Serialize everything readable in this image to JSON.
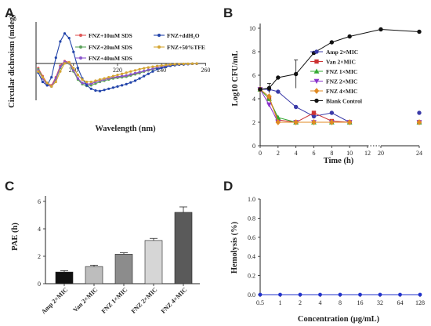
{
  "chart_data": [
    {
      "panel": "A",
      "type": "line",
      "xlabel": "Wavelength (nm)",
      "ylabel": "Circular dichroism (mdeg)",
      "xticks": [
        "200",
        "220",
        "240",
        "260"
      ],
      "xlim": [
        183,
        262
      ],
      "ylim": [
        -3.2,
        3.6
      ],
      "series": [
        {
          "name": "FNZ+10mM SDS",
          "color": "#e05555",
          "marker": "circle",
          "x": [
            184,
            186,
            188,
            190,
            192,
            194,
            196,
            198,
            200,
            202,
            204,
            206,
            208,
            210,
            212,
            214,
            216,
            218,
            220,
            222,
            224,
            226,
            228,
            230,
            232,
            234,
            236,
            238,
            240,
            242,
            244,
            246,
            248,
            250,
            252,
            254,
            256
          ],
          "y": [
            -0.4,
            -1.1,
            -1.7,
            -1.9,
            -1.2,
            -0.2,
            0.2,
            0.1,
            -0.6,
            -1.3,
            -1.7,
            -1.8,
            -1.8,
            -1.6,
            -1.5,
            -1.4,
            -1.3,
            -1.25,
            -1.2,
            -1.15,
            -1.1,
            -1.0,
            -0.9,
            -0.8,
            -0.7,
            -0.6,
            -0.5,
            -0.4,
            -0.3,
            -0.25,
            -0.2,
            -0.15,
            -0.1,
            -0.08,
            -0.05,
            -0.03,
            -0.02
          ]
        },
        {
          "name": "FNZ+20mM SDS",
          "color": "#5aa15a",
          "marker": "circle",
          "x": [
            184,
            186,
            188,
            190,
            192,
            194,
            196,
            198,
            200,
            202,
            204,
            206,
            208,
            210,
            212,
            214,
            216,
            218,
            220,
            222,
            224,
            226,
            228,
            230,
            232,
            234,
            236,
            238,
            240,
            242,
            244,
            246,
            248,
            250,
            252,
            254,
            256
          ],
          "y": [
            -0.5,
            -1.2,
            -1.8,
            -2.0,
            -1.4,
            -0.4,
            0.1,
            0.0,
            -0.7,
            -1.4,
            -1.8,
            -1.95,
            -1.9,
            -1.75,
            -1.6,
            -1.5,
            -1.4,
            -1.3,
            -1.25,
            -1.2,
            -1.15,
            -1.05,
            -0.95,
            -0.85,
            -0.7,
            -0.6,
            -0.5,
            -0.4,
            -0.3,
            -0.25,
            -0.2,
            -0.15,
            -0.1,
            -0.08,
            -0.05,
            -0.03,
            -0.02
          ]
        },
        {
          "name": "FNZ+40mM SDS",
          "color": "#8a55cc",
          "marker": "circle",
          "x": [
            184,
            186,
            188,
            190,
            192,
            194,
            196,
            198,
            200,
            202,
            204,
            206,
            208,
            210,
            212,
            214,
            216,
            218,
            220,
            222,
            224,
            226,
            228,
            230,
            232,
            234,
            236,
            238,
            240,
            242,
            244,
            246,
            248,
            250,
            252,
            254,
            256
          ],
          "y": [
            -0.6,
            -1.3,
            -1.9,
            -2.0,
            -1.3,
            -0.3,
            0.15,
            0.05,
            -0.6,
            -1.3,
            -1.7,
            -1.8,
            -1.75,
            -1.6,
            -1.5,
            -1.4,
            -1.3,
            -1.2,
            -1.15,
            -1.1,
            -1.05,
            -0.95,
            -0.85,
            -0.75,
            -0.65,
            -0.55,
            -0.45,
            -0.35,
            -0.3,
            -0.22,
            -0.18,
            -0.12,
            -0.1,
            -0.07,
            -0.05,
            -0.03,
            -0.02
          ]
        },
        {
          "name": "FNZ+ddH₂O",
          "color": "#2244aa",
          "marker": "circle",
          "x": [
            184,
            186,
            188,
            190,
            192,
            194,
            196,
            198,
            200,
            202,
            204,
            206,
            208,
            210,
            212,
            214,
            216,
            218,
            220,
            222,
            224,
            226,
            228,
            230,
            232,
            234,
            236,
            238,
            240,
            242,
            244,
            246,
            248,
            250,
            252,
            254,
            256
          ],
          "y": [
            -0.8,
            -1.6,
            -1.9,
            -1.2,
            0.5,
            1.9,
            2.6,
            2.2,
            1.0,
            -0.4,
            -1.3,
            -1.9,
            -2.2,
            -2.35,
            -2.4,
            -2.3,
            -2.2,
            -2.1,
            -2.0,
            -1.9,
            -1.8,
            -1.65,
            -1.5,
            -1.3,
            -1.1,
            -0.9,
            -0.7,
            -0.5,
            -0.4,
            -0.3,
            -0.2,
            -0.15,
            -0.1,
            -0.08,
            -0.05,
            -0.03,
            -0.02
          ]
        },
        {
          "name": "FNZ+50%TFE",
          "color": "#d4a533",
          "marker": "circle",
          "x": [
            184,
            186,
            188,
            190,
            192,
            194,
            196,
            198,
            200,
            202,
            204,
            206,
            208,
            210,
            212,
            214,
            216,
            218,
            220,
            222,
            224,
            226,
            228,
            230,
            232,
            234,
            236,
            238,
            240,
            242,
            244,
            246,
            248,
            250,
            252,
            254,
            256
          ],
          "y": [
            -0.7,
            -1.2,
            -1.7,
            -2.0,
            -1.6,
            -0.7,
            0.0,
            0.1,
            -0.4,
            -1.0,
            -1.4,
            -1.6,
            -1.6,
            -1.5,
            -1.4,
            -1.3,
            -1.2,
            -1.1,
            -1.0,
            -0.9,
            -0.8,
            -0.7,
            -0.6,
            -0.5,
            -0.42,
            -0.35,
            -0.28,
            -0.22,
            -0.18,
            -0.14,
            -0.1,
            -0.07,
            -0.05,
            -0.04,
            -0.03,
            -0.02,
            -0.01
          ]
        }
      ]
    },
    {
      "panel": "B",
      "type": "line",
      "xlabel": "Time (h)",
      "ylabel": "Log10 CFU/mL",
      "yticks": [
        0,
        2,
        4,
        6,
        8,
        10
      ],
      "xticks": [
        "0",
        "2",
        "4",
        "6",
        "8",
        "10",
        "12",
        "20",
        "24"
      ],
      "xticks_values": [
        0,
        2,
        4,
        6,
        8,
        10,
        12,
        20,
        24
      ],
      "axis_break": [
        12,
        20
      ],
      "ylim": [
        0,
        10
      ],
      "series": [
        {
          "name": "Amp 2×MIC",
          "color": "#3a3aa8",
          "marker": "circle",
          "x": [
            0,
            1,
            2,
            4,
            6,
            8,
            10,
            24
          ],
          "y": [
            4.8,
            4.8,
            4.6,
            3.3,
            2.5,
            2.8,
            2.0,
            2.8
          ]
        },
        {
          "name": "Van  2×MIC",
          "color": "#cc3333",
          "marker": "square",
          "x": [
            0,
            1,
            2,
            4,
            6,
            8,
            10,
            24
          ],
          "y": [
            4.8,
            4.0,
            2.2,
            2.0,
            2.8,
            2.1,
            2.0,
            2.0
          ]
        },
        {
          "name": "FNZ 1×MIC",
          "color": "#33aa33",
          "marker": "triangle",
          "x": [
            0,
            1,
            2,
            4,
            6,
            8,
            10,
            24
          ],
          "y": [
            4.8,
            4.0,
            2.4,
            2.0,
            2.0,
            2.0,
            2.0,
            2.0
          ]
        },
        {
          "name": "FNZ 2×MIC",
          "color": "#8a33cc",
          "marker": "triangle-down",
          "x": [
            0,
            1,
            2,
            4,
            6,
            8,
            10,
            24
          ],
          "y": [
            4.8,
            3.5,
            2.0,
            2.0,
            2.0,
            2.0,
            2.0,
            2.0
          ]
        },
        {
          "name": "FNZ 4×MIC",
          "color": "#e08a22",
          "marker": "diamond",
          "x": [
            0,
            1,
            2,
            4,
            6,
            8,
            10,
            24
          ],
          "y": [
            4.8,
            4.2,
            2.0,
            2.0,
            2.0,
            2.0,
            2.0,
            2.0
          ]
        },
        {
          "name": "Blank Control",
          "color": "#111111",
          "marker": "circle",
          "x": [
            0,
            1,
            2,
            4,
            6,
            8,
            10,
            20,
            24
          ],
          "y": [
            4.8,
            4.9,
            5.8,
            6.1,
            7.9,
            8.8,
            9.3,
            9.9,
            9.7
          ],
          "err": [
            0,
            0.4,
            0,
            1.2,
            0,
            0,
            0,
            0,
            0
          ]
        }
      ]
    },
    {
      "panel": "C",
      "type": "bar",
      "ylabel": "PAE (h)",
      "categories": [
        "Amp 2×MIC",
        "Van 2×MIC",
        "FNZ 1×MIC",
        "FNZ 2×MIC",
        "FNZ 4×MIC"
      ],
      "values": [
        0.85,
        1.25,
        2.15,
        3.15,
        5.2
      ],
      "errors": [
        0.1,
        0.1,
        0.1,
        0.15,
        0.4
      ],
      "colors": [
        "#111111",
        "#bdbdbd",
        "#8c8c8c",
        "#d6d6d6",
        "#5a5a5a"
      ],
      "yticks": [
        0,
        2,
        4,
        6
      ],
      "ylim": [
        0,
        6.4
      ]
    },
    {
      "panel": "D",
      "type": "line",
      "xlabel": "Concentration (μg/mL)",
      "ylabel": "Hemolysis (%)",
      "categories": [
        "0.5",
        "1",
        "2",
        "4",
        "8",
        "16",
        "32",
        "64",
        "128"
      ],
      "values": [
        0,
        0,
        0,
        0,
        0,
        0,
        0,
        0,
        0
      ],
      "yticks": [
        "0.0",
        "0.2",
        "0.4",
        "0.6",
        "0.8",
        "1.0"
      ],
      "ylim": [
        0,
        1.0
      ],
      "color": "#2233cc"
    }
  ],
  "panels": {
    "a": "A",
    "b": "B",
    "c": "C",
    "d": "D"
  },
  "colors": {
    "axis": "#222222"
  }
}
